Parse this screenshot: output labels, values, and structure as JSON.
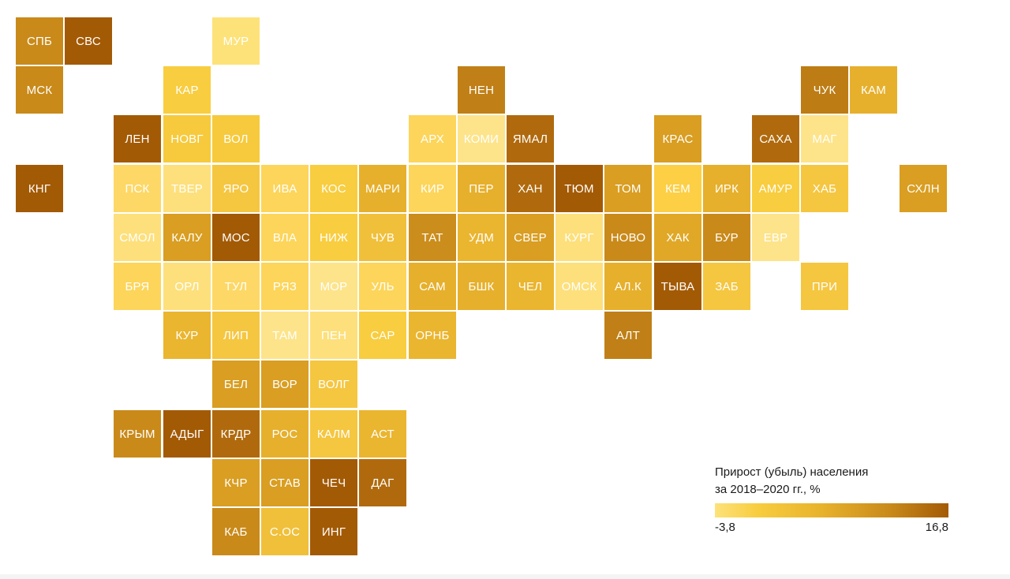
{
  "legend": {
    "title_line1": "Прирост (убыль) населения",
    "title_line2": "за 2018–2020 гг., %",
    "min_label": "-3,8",
    "max_label": "16,8",
    "colors": [
      "#fde27a",
      "#f8cd3f",
      "#e8b32c",
      "#c98a1a",
      "#a35a05"
    ]
  },
  "regions": [
    {
      "label": "СПБ",
      "color": "#c98a1a",
      "col": 0,
      "row": 0
    },
    {
      "label": "СВС",
      "color": "#a35a05",
      "col": 1,
      "row": 0
    },
    {
      "label": "МУР",
      "color": "#fde27a",
      "col": 4,
      "row": 0
    },
    {
      "label": "МСК",
      "color": "#c98a1a",
      "col": 0,
      "row": 1
    },
    {
      "label": "КАР",
      "color": "#f8cd3f",
      "col": 3,
      "row": 1
    },
    {
      "label": "НЕН",
      "color": "#c08017",
      "col": 9,
      "row": 1
    },
    {
      "label": "ЧУК",
      "color": "#bd7c14",
      "col": 16,
      "row": 1
    },
    {
      "label": "КАМ",
      "color": "#e6b02c",
      "col": 17,
      "row": 1
    },
    {
      "label": "ЛЕН",
      "color": "#a35a05",
      "col": 2,
      "row": 2
    },
    {
      "label": "НОВГ",
      "color": "#f6ca3c",
      "col": 3,
      "row": 2
    },
    {
      "label": "ВОЛ",
      "color": "#f6ca3c",
      "col": 4,
      "row": 2
    },
    {
      "label": "АРХ",
      "color": "#fcd55a",
      "col": 8,
      "row": 2
    },
    {
      "label": "КОМИ",
      "color": "#fde48a",
      "col": 9,
      "row": 2
    },
    {
      "label": "ЯМАЛ",
      "color": "#b06a0d",
      "col": 10,
      "row": 2
    },
    {
      "label": "КРАС",
      "color": "#d99e22",
      "col": 13,
      "row": 2
    },
    {
      "label": "САХА",
      "color": "#b06a0d",
      "col": 15,
      "row": 2
    },
    {
      "label": "МАГ",
      "color": "#fde48a",
      "col": 16,
      "row": 2
    },
    {
      "label": "КНГ",
      "color": "#a35a05",
      "col": 0,
      "row": 3
    },
    {
      "label": "ПСК",
      "color": "#fdd866",
      "col": 2,
      "row": 3
    },
    {
      "label": "ТВЕР",
      "color": "#fde07c",
      "col": 3,
      "row": 3
    },
    {
      "label": "ЯРО",
      "color": "#f5c640",
      "col": 4,
      "row": 3
    },
    {
      "label": "ИВА",
      "color": "#fcd55a",
      "col": 5,
      "row": 3
    },
    {
      "label": "КОС",
      "color": "#f8cd3f",
      "col": 6,
      "row": 3
    },
    {
      "label": "МАРИ",
      "color": "#e6b02c",
      "col": 7,
      "row": 3
    },
    {
      "label": "КИР",
      "color": "#fcd55a",
      "col": 8,
      "row": 3
    },
    {
      "label": "ПЕР",
      "color": "#e6b02c",
      "col": 9,
      "row": 3
    },
    {
      "label": "ХАН",
      "color": "#b06a0d",
      "col": 10,
      "row": 3
    },
    {
      "label": "ТЮМ",
      "color": "#a35a05",
      "col": 11,
      "row": 3
    },
    {
      "label": "ТОМ",
      "color": "#d99e22",
      "col": 12,
      "row": 3
    },
    {
      "label": "КЕМ",
      "color": "#fccf45",
      "col": 13,
      "row": 3
    },
    {
      "label": "ИРК",
      "color": "#e6b02c",
      "col": 14,
      "row": 3
    },
    {
      "label": "АМУР",
      "color": "#f8cd3f",
      "col": 15,
      "row": 3
    },
    {
      "label": "ХАБ",
      "color": "#f5c640",
      "col": 16,
      "row": 3
    },
    {
      "label": "СХЛН",
      "color": "#d99e22",
      "col": 18,
      "row": 3
    },
    {
      "label": "СМОЛ",
      "color": "#fde07c",
      "col": 2,
      "row": 4
    },
    {
      "label": "КАЛУ",
      "color": "#d99e22",
      "col": 3,
      "row": 4
    },
    {
      "label": "МОС",
      "color": "#a35a05",
      "col": 4,
      "row": 4
    },
    {
      "label": "ВЛА",
      "color": "#fcd55a",
      "col": 5,
      "row": 4
    },
    {
      "label": "НИЖ",
      "color": "#f8cd3f",
      "col": 6,
      "row": 4
    },
    {
      "label": "ЧУВ",
      "color": "#f0c03a",
      "col": 7,
      "row": 4
    },
    {
      "label": "ТАТ",
      "color": "#cb8d1b",
      "col": 8,
      "row": 4
    },
    {
      "label": "УДМ",
      "color": "#eab52f",
      "col": 9,
      "row": 4
    },
    {
      "label": "СВЕР",
      "color": "#d99e22",
      "col": 10,
      "row": 4
    },
    {
      "label": "КУРГ",
      "color": "#fde07c",
      "col": 11,
      "row": 4
    },
    {
      "label": "НОВО",
      "color": "#c98a1a",
      "col": 12,
      "row": 4
    },
    {
      "label": "ХАК",
      "color": "#e0a826",
      "col": 13,
      "row": 4
    },
    {
      "label": "БУР",
      "color": "#c98a1a",
      "col": 14,
      "row": 4
    },
    {
      "label": "ЕВР",
      "color": "#fde48a",
      "col": 15,
      "row": 4
    },
    {
      "label": "БРЯ",
      "color": "#fcd55a",
      "col": 2,
      "row": 5
    },
    {
      "label": "ОРЛ",
      "color": "#fde07c",
      "col": 3,
      "row": 5
    },
    {
      "label": "ТУЛ",
      "color": "#fdd866",
      "col": 4,
      "row": 5
    },
    {
      "label": "РЯЗ",
      "color": "#fcd55a",
      "col": 5,
      "row": 5
    },
    {
      "label": "МОР",
      "color": "#fde48a",
      "col": 6,
      "row": 5
    },
    {
      "label": "УЛЬ",
      "color": "#fcd55a",
      "col": 7,
      "row": 5
    },
    {
      "label": "САМ",
      "color": "#e6b02c",
      "col": 8,
      "row": 5
    },
    {
      "label": "БШК",
      "color": "#e6b02c",
      "col": 9,
      "row": 5
    },
    {
      "label": "ЧЕЛ",
      "color": "#eab52f",
      "col": 10,
      "row": 5
    },
    {
      "label": "ОМСК",
      "color": "#fde07c",
      "col": 11,
      "row": 5
    },
    {
      "label": "АЛ.К",
      "color": "#e6b02c",
      "col": 12,
      "row": 5
    },
    {
      "label": "ТЫВА",
      "color": "#a35a05",
      "col": 13,
      "row": 5
    },
    {
      "label": "ЗАБ",
      "color": "#f5c640",
      "col": 14,
      "row": 5
    },
    {
      "label": "ПРИ",
      "color": "#f5c640",
      "col": 16,
      "row": 5
    },
    {
      "label": "КУР",
      "color": "#eab52f",
      "col": 3,
      "row": 6
    },
    {
      "label": "ЛИП",
      "color": "#f5c640",
      "col": 4,
      "row": 6
    },
    {
      "label": "ТАМ",
      "color": "#fde48a",
      "col": 5,
      "row": 6
    },
    {
      "label": "ПЕН",
      "color": "#fde07c",
      "col": 6,
      "row": 6
    },
    {
      "label": "САР",
      "color": "#f8cd3f",
      "col": 7,
      "row": 6
    },
    {
      "label": "ОРНБ",
      "color": "#eab52f",
      "col": 8,
      "row": 6
    },
    {
      "label": "АЛТ",
      "color": "#c08017",
      "col": 12,
      "row": 6
    },
    {
      "label": "БЕЛ",
      "color": "#d99e22",
      "col": 4,
      "row": 7
    },
    {
      "label": "ВОР",
      "color": "#d99e22",
      "col": 5,
      "row": 7
    },
    {
      "label": "ВОЛГ",
      "color": "#f5c640",
      "col": 6,
      "row": 7
    },
    {
      "label": "КРЫМ",
      "color": "#c98a1a",
      "col": 2,
      "row": 8
    },
    {
      "label": "АДЫГ",
      "color": "#a35a05",
      "col": 3,
      "row": 8
    },
    {
      "label": "КРДР",
      "color": "#b06a0d",
      "col": 4,
      "row": 8
    },
    {
      "label": "РОС",
      "color": "#e6b02c",
      "col": 5,
      "row": 8
    },
    {
      "label": "КАЛМ",
      "color": "#f5c640",
      "col": 6,
      "row": 8
    },
    {
      "label": "АСТ",
      "color": "#eab52f",
      "col": 7,
      "row": 8
    },
    {
      "label": "КЧР",
      "color": "#d99e22",
      "col": 4,
      "row": 9
    },
    {
      "label": "СТАВ",
      "color": "#d99e22",
      "col": 5,
      "row": 9
    },
    {
      "label": "ЧЕЧ",
      "color": "#a35a05",
      "col": 6,
      "row": 9
    },
    {
      "label": "ДАГ",
      "color": "#b06a0d",
      "col": 7,
      "row": 9
    },
    {
      "label": "КАБ",
      "color": "#c98a1a",
      "col": 4,
      "row": 10
    },
    {
      "label": "С.ОС",
      "color": "#f0c03a",
      "col": 5,
      "row": 10
    },
    {
      "label": "ИНГ",
      "color": "#a35a05",
      "col": 6,
      "row": 10
    }
  ]
}
